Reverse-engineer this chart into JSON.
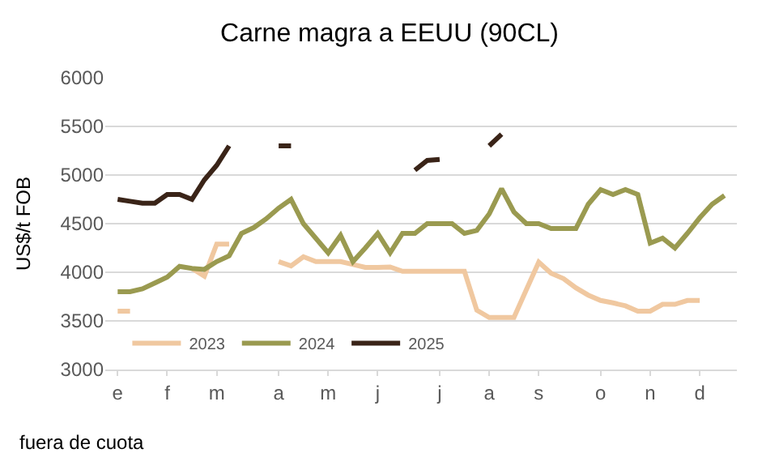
{
  "chart_data": {
    "type": "line",
    "title": "Carne magra a EEUU (90CL)",
    "ylabel": "US$/t FOB",
    "categories": [
      "e",
      null,
      null,
      null,
      "f",
      null,
      null,
      null,
      "m",
      null,
      null,
      null,
      null,
      "a",
      null,
      null,
      null,
      "m",
      null,
      null,
      null,
      "j",
      null,
      null,
      null,
      null,
      "j",
      null,
      null,
      null,
      "a",
      null,
      null,
      null,
      "s",
      null,
      null,
      null,
      null,
      "o",
      null,
      null,
      null,
      "n",
      null,
      null,
      null,
      "d",
      null,
      null
    ],
    "series": [
      {
        "name": "2023",
        "color": "#f0c8a0",
        "values": [
          3600,
          3600,
          null,
          null,
          null,
          null,
          4040,
          3960,
          4290,
          4290,
          null,
          null,
          null,
          4110,
          4065,
          4160,
          4110,
          4110,
          4110,
          4080,
          4050,
          4050,
          4055,
          4010,
          4010,
          4010,
          4010,
          4010,
          4010,
          3610,
          3535,
          3535,
          3535,
          3820,
          4105,
          3990,
          3935,
          3840,
          3765,
          3710,
          3685,
          3655,
          3600,
          3600,
          3670,
          3670,
          3710,
          3710,
          null,
          null
        ]
      },
      {
        "name": "2024",
        "color": "#9a9a50",
        "values": [
          3800,
          3800,
          3830,
          3890,
          3950,
          4060,
          4040,
          4030,
          4110,
          4170,
          4400,
          4460,
          4550,
          4660,
          4750,
          4500,
          4350,
          4200,
          4380,
          4110,
          4250,
          4400,
          4200,
          4400,
          4400,
          4500,
          4500,
          4500,
          4400,
          4430,
          4600,
          4860,
          4620,
          4500,
          4500,
          4450,
          4450,
          4450,
          4700,
          4850,
          4800,
          4850,
          4800,
          4300,
          4350,
          4250,
          4400,
          4560,
          4700,
          4790
        ]
      },
      {
        "name": "2025",
        "color": "#3a2418",
        "values": [
          4750,
          4730,
          4710,
          4710,
          4800,
          4800,
          4750,
          4950,
          5100,
          5300,
          null,
          null,
          null,
          5300,
          5300,
          null,
          null,
          null,
          null,
          null,
          null,
          null,
          null,
          null,
          5050,
          5150,
          5160,
          null,
          null,
          null,
          5300,
          5420,
          null,
          null,
          null,
          null,
          null,
          null,
          null,
          null,
          null,
          null,
          null,
          null,
          null,
          null,
          null,
          null,
          null,
          null
        ]
      }
    ],
    "ylim": [
      3000,
      6000
    ],
    "yticks": [
      3000,
      3500,
      4000,
      4500,
      5000,
      5500,
      6000
    ],
    "grid": "y",
    "legend": "bottom",
    "marker": "none",
    "line_style": "solid",
    "annotations": [
      "fuera de cuota"
    ]
  }
}
